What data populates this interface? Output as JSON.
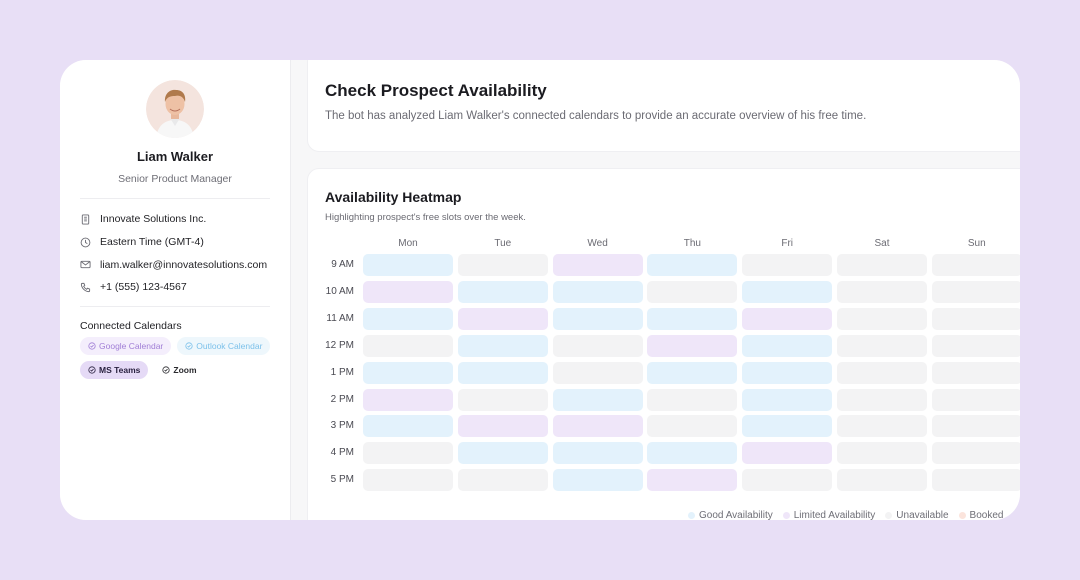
{
  "profile": {
    "name": "Liam Walker",
    "title": "Senior Product Manager",
    "company": "Innovate Solutions Inc.",
    "timezone": "Eastern Time (GMT-4)",
    "email": "liam.walker@innovatesolutions.com",
    "phone": "+1 (555) 123-4567"
  },
  "calendars": {
    "title": "Connected Calendars",
    "items": [
      {
        "label": "Google Calendar",
        "style": "google"
      },
      {
        "label": "Outlook Calendar",
        "style": "outlook"
      },
      {
        "label": "MS Teams",
        "style": "teams"
      },
      {
        "label": "Zoom",
        "style": "zoom"
      }
    ]
  },
  "header": {
    "title": "Check Prospect Availability",
    "subtitle": "The bot has analyzed Liam Walker's connected calendars to provide an accurate overview of his free time."
  },
  "heatmap": {
    "title": "Availability Heatmap",
    "subtitle": "Highlighting prospect's free slots over the week.",
    "days": [
      "Mon",
      "Tue",
      "Wed",
      "Thu",
      "Fri",
      "Sat",
      "Sun"
    ],
    "times": [
      "9 AM",
      "10 AM",
      "11 AM",
      "12 PM",
      "1 PM",
      "2 PM",
      "3 PM",
      "4 PM",
      "5 PM"
    ],
    "cells": [
      [
        "good",
        "unavailable",
        "limited",
        "good",
        "unavailable",
        "unavailable",
        "unavailable"
      ],
      [
        "limited",
        "good",
        "good",
        "unavailable",
        "good",
        "unavailable",
        "unavailable"
      ],
      [
        "good",
        "limited",
        "good",
        "good",
        "limited",
        "unavailable",
        "unavailable"
      ],
      [
        "unavailable",
        "good",
        "unavailable",
        "limited",
        "good",
        "unavailable",
        "unavailable"
      ],
      [
        "good",
        "good",
        "unavailable",
        "good",
        "good",
        "unavailable",
        "unavailable"
      ],
      [
        "limited",
        "unavailable",
        "good",
        "unavailable",
        "good",
        "unavailable",
        "unavailable"
      ],
      [
        "good",
        "limited",
        "limited",
        "unavailable",
        "good",
        "unavailable",
        "unavailable"
      ],
      [
        "unavailable",
        "good",
        "good",
        "good",
        "limited",
        "unavailable",
        "unavailable"
      ],
      [
        "unavailable",
        "unavailable",
        "good",
        "limited",
        "unavailable",
        "unavailable",
        "unavailable"
      ]
    ],
    "colors": {
      "good": "#e3f2fc",
      "limited": "#efe6f9",
      "unavailable": "#f3f3f4",
      "booked": "#fbe4dc"
    },
    "legend": [
      {
        "label": "Good Availability",
        "key": "good"
      },
      {
        "label": "Limited Availability",
        "key": "limited"
      },
      {
        "label": "Unavailable",
        "key": "unavailable"
      },
      {
        "label": "Booked",
        "key": "booked"
      }
    ]
  }
}
